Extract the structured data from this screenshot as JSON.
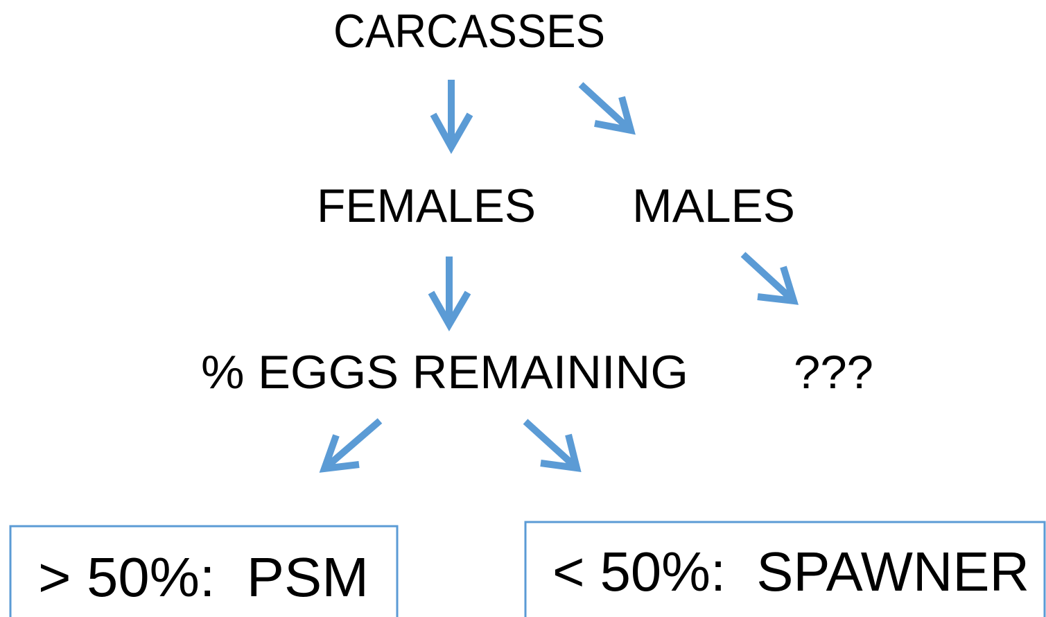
{
  "nodes": [
    {
      "label": "CARCASSES"
    },
    {
      "label": "FEMALES"
    },
    {
      "label": "MALES"
    },
    {
      "label": "% EGGS REMAINING"
    },
    {
      "label": "???"
    },
    {
      "label": "> 50%:  PSM"
    },
    {
      "label": "< 50%:  SPAWNER"
    }
  ]
}
